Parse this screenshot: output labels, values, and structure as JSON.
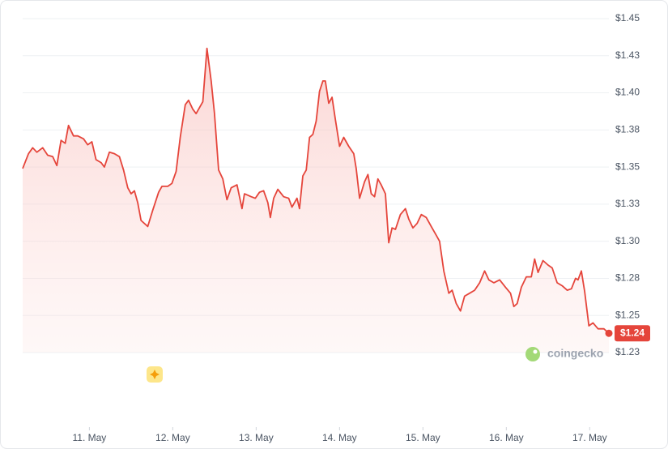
{
  "chart_data": {
    "type": "line",
    "color": "#e5453b",
    "x": [
      10.2,
      10.27,
      10.32,
      10.37,
      10.44,
      10.5,
      10.56,
      10.61,
      10.66,
      10.71,
      10.75,
      10.81,
      10.86,
      10.93,
      10.98,
      11.03,
      11.08,
      11.14,
      11.18,
      11.24,
      11.3,
      11.36,
      11.41,
      11.46,
      11.5,
      11.54,
      11.58,
      11.62,
      11.7,
      11.76,
      11.83,
      11.87,
      11.94,
      11.99,
      12.04,
      12.09,
      12.15,
      12.19,
      12.24,
      12.28,
      12.32,
      12.36,
      12.41,
      12.46,
      12.5,
      12.55,
      12.6,
      12.65,
      12.7,
      12.77,
      12.83,
      12.86,
      12.94,
      12.99,
      13.04,
      13.09,
      13.14,
      13.17,
      13.21,
      13.26,
      13.33,
      13.39,
      13.43,
      13.49,
      13.52,
      13.56,
      13.6,
      13.64,
      13.68,
      13.72,
      13.76,
      13.8,
      13.83,
      13.87,
      13.91,
      13.95,
      14.0,
      14.05,
      14.11,
      14.17,
      14.2,
      14.24,
      14.3,
      14.34,
      14.38,
      14.42,
      14.46,
      14.5,
      14.55,
      14.59,
      14.63,
      14.67,
      14.73,
      14.79,
      14.83,
      14.88,
      14.93,
      14.98,
      15.04,
      15.1,
      15.16,
      15.2,
      15.25,
      15.31,
      15.35,
      15.4,
      15.45,
      15.5,
      15.56,
      15.62,
      15.68,
      15.74,
      15.79,
      15.85,
      15.92,
      15.99,
      16.05,
      16.09,
      16.13,
      16.18,
      16.24,
      16.3,
      16.34,
      16.38,
      16.44,
      16.5,
      16.55,
      16.61,
      16.67,
      16.73,
      16.78,
      16.83,
      16.86,
      16.9,
      16.94,
      16.99,
      17.04,
      17.1,
      17.17,
      17.23
    ],
    "values": [
      1.349,
      1.359,
      1.363,
      1.36,
      1.363,
      1.358,
      1.357,
      1.351,
      1.368,
      1.366,
      1.378,
      1.371,
      1.371,
      1.369,
      1.365,
      1.367,
      1.355,
      1.353,
      1.35,
      1.36,
      1.359,
      1.357,
      1.348,
      1.336,
      1.332,
      1.334,
      1.326,
      1.314,
      1.31,
      1.321,
      1.333,
      1.337,
      1.337,
      1.339,
      1.347,
      1.37,
      1.392,
      1.395,
      1.389,
      1.386,
      1.39,
      1.394,
      1.43,
      1.408,
      1.386,
      1.348,
      1.342,
      1.328,
      1.336,
      1.338,
      1.322,
      1.332,
      1.33,
      1.329,
      1.333,
      1.334,
      1.326,
      1.316,
      1.329,
      1.335,
      1.33,
      1.329,
      1.323,
      1.329,
      1.322,
      1.344,
      1.348,
      1.37,
      1.372,
      1.381,
      1.401,
      1.408,
      1.408,
      1.393,
      1.397,
      1.382,
      1.364,
      1.37,
      1.364,
      1.359,
      1.349,
      1.329,
      1.34,
      1.345,
      1.332,
      1.33,
      1.342,
      1.338,
      1.332,
      1.299,
      1.309,
      1.308,
      1.318,
      1.322,
      1.315,
      1.309,
      1.312,
      1.318,
      1.316,
      1.31,
      1.304,
      1.3,
      1.28,
      1.265,
      1.267,
      1.258,
      1.253,
      1.263,
      1.265,
      1.267,
      1.272,
      1.28,
      1.274,
      1.272,
      1.274,
      1.269,
      1.265,
      1.256,
      1.258,
      1.269,
      1.276,
      1.276,
      1.288,
      1.279,
      1.287,
      1.284,
      1.282,
      1.272,
      1.27,
      1.267,
      1.268,
      1.275,
      1.274,
      1.28,
      1.266,
      1.243,
      1.245,
      1.241,
      1.241,
      1.238
    ],
    "xlim": [
      10.2,
      17.23
    ],
    "xticks": [
      {
        "value": 11,
        "label": "11. May"
      },
      {
        "value": 12,
        "label": "12. May"
      },
      {
        "value": 13,
        "label": "13. May"
      },
      {
        "value": 14,
        "label": "14. May"
      },
      {
        "value": 15,
        "label": "15. May"
      },
      {
        "value": 16,
        "label": "16. May"
      },
      {
        "value": 17,
        "label": "17. May"
      }
    ],
    "ylim": [
      1.225,
      1.45
    ],
    "yticks": [
      {
        "value": 1.225,
        "label": "$1.23"
      },
      {
        "value": 1.25,
        "label": "$1.25"
      },
      {
        "value": 1.275,
        "label": "$1.28"
      },
      {
        "value": 1.3,
        "label": "$1.30"
      },
      {
        "value": 1.325,
        "label": "$1.33"
      },
      {
        "value": 1.35,
        "label": "$1.35"
      },
      {
        "value": 1.375,
        "label": "$1.38"
      },
      {
        "value": 1.4,
        "label": "$1.40"
      },
      {
        "value": 1.425,
        "label": "$1.43"
      },
      {
        "value": 1.45,
        "label": "$1.45"
      }
    ],
    "grid": true,
    "annotation": {
      "x": 17.23,
      "y": 1.238,
      "label": "$1.24"
    },
    "watermark": "coingecko"
  }
}
